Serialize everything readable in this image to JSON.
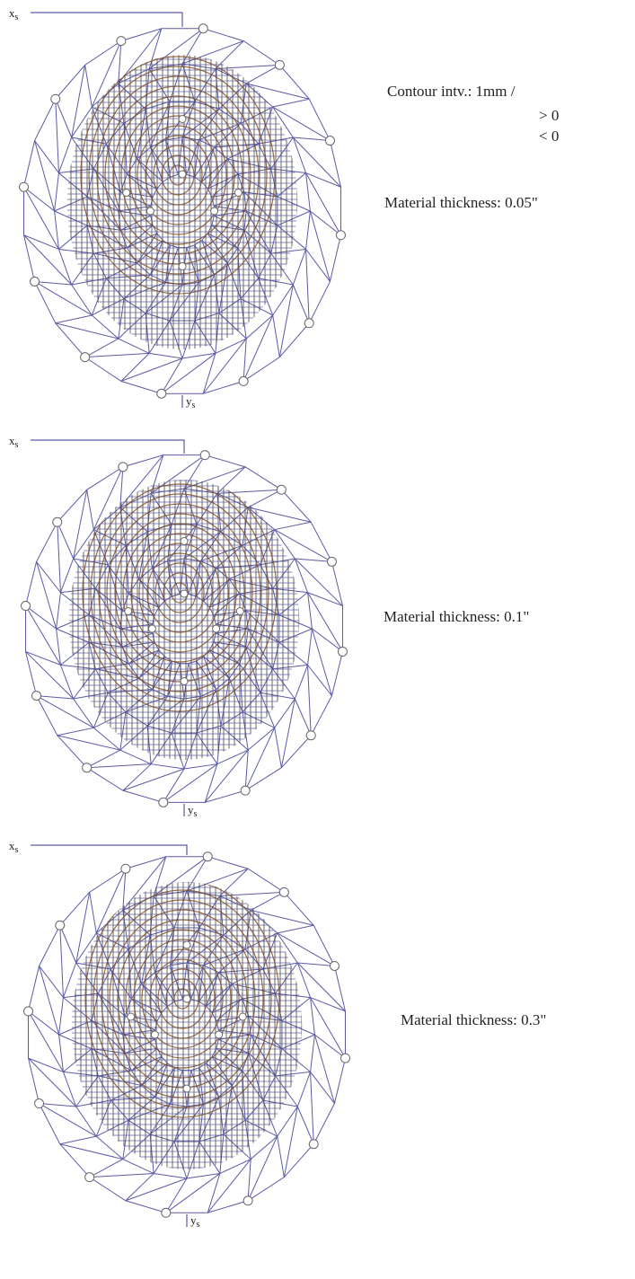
{
  "legend": {
    "title": "Contour intv.: 1mm /",
    "items": [
      "> 0",
      "< 0"
    ]
  },
  "panels": [
    {
      "x_axis": {
        "symbol": "x",
        "subscript": "s"
      },
      "y_axis": {
        "symbol": "y",
        "subscript": "s"
      },
      "label": "Material thickness: 0.05\""
    },
    {
      "x_axis": {
        "symbol": "x",
        "subscript": "s"
      },
      "y_axis": {
        "symbol": "y",
        "subscript": "s"
      },
      "label": "Material thickness: 0.1\""
    },
    {
      "x_axis": {
        "symbol": "x",
        "subscript": "s"
      },
      "y_axis": {
        "symbol": "y",
        "subscript": "s"
      },
      "label": "Material thickness: 0.3\""
    }
  ]
}
